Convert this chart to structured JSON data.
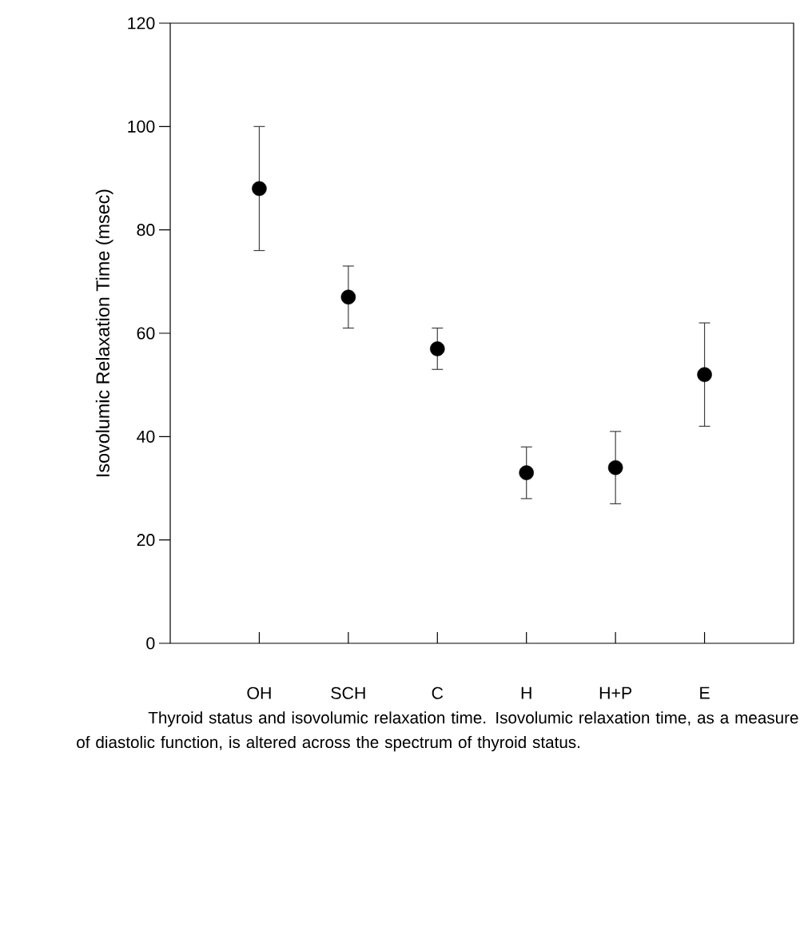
{
  "chart_data": {
    "type": "scatter",
    "ylabel": "Isovolumic Relaxation Time (msec)",
    "categories": [
      "OH",
      "SCH",
      "C",
      "H",
      "H+P",
      "E"
    ],
    "values": [
      88,
      67,
      57,
      33,
      34,
      52
    ],
    "errors": [
      12,
      6,
      4,
      5,
      7,
      10
    ],
    "color": "#000000",
    "marker": "circle",
    "ylim": [
      0,
      120
    ],
    "yticks": [
      0,
      20,
      40,
      60,
      80,
      100,
      120
    ],
    "annotations": [
      "Thyroid status and isovolumic relaxation time. Isovolumic relaxation time, as a measure of diastolic function, is altered across the spectrum of thyroid status."
    ]
  }
}
